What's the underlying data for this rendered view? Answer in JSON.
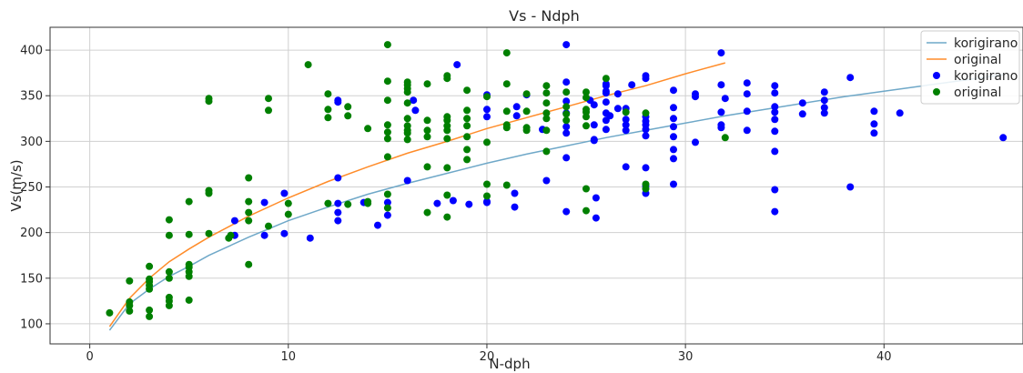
{
  "chart_data": {
    "type": "scatter",
    "title": "Vs - Ndph",
    "xlabel": "N-dph",
    "ylabel": "Vs(m/s)",
    "xlim": [
      -2,
      47
    ],
    "ylim": [
      78,
      425
    ],
    "xticks": [
      0,
      10,
      20,
      30,
      40
    ],
    "yticks": [
      100,
      150,
      200,
      250,
      300,
      350,
      400
    ],
    "grid": true,
    "legend_position": "top-right",
    "colors": {
      "korigirano_line": "#6fa8c8",
      "original_line": "#ff8c2a",
      "korigirano_points": "#0000ff",
      "original_points": "#008000",
      "grid": "#d0d0d0"
    },
    "series": [
      {
        "name": "korigirano",
        "kind": "line",
        "x": [
          1,
          2,
          3,
          4,
          5,
          6,
          8,
          10,
          12,
          14,
          16,
          18,
          20,
          22,
          24,
          26,
          28,
          30,
          32,
          34,
          36,
          38,
          40,
          42,
          44,
          46
        ],
        "y": [
          93,
          122,
          138,
          152,
          163,
          175,
          195,
          213,
          228,
          242,
          254,
          265,
          276,
          286,
          295,
          304,
          312,
          320,
          328,
          335,
          342,
          349,
          355,
          361,
          367,
          373
        ]
      },
      {
        "name": "original",
        "kind": "line",
        "x": [
          1,
          2,
          3,
          4,
          5,
          6,
          8,
          10,
          12,
          14,
          16,
          18,
          20,
          22,
          24,
          26,
          28,
          30,
          32
        ],
        "y": [
          97,
          128,
          150,
          168,
          182,
          195,
          218,
          238,
          256,
          272,
          287,
          300,
          314,
          326,
          338,
          350,
          361,
          374,
          386
        ]
      },
      {
        "name": "korigirano",
        "kind": "scatter",
        "points": [
          [
            7.3,
            213
          ],
          [
            7.3,
            197
          ],
          [
            8.8,
            233
          ],
          [
            8.8,
            197
          ],
          [
            9.8,
            243
          ],
          [
            9.8,
            199
          ],
          [
            11.1,
            194
          ],
          [
            12.5,
            260
          ],
          [
            12.5,
            222
          ],
          [
            12.5,
            232
          ],
          [
            12.5,
            213
          ],
          [
            12.5,
            345
          ],
          [
            12.5,
            343
          ],
          [
            13.8,
            233
          ],
          [
            14.5,
            208
          ],
          [
            15,
            233
          ],
          [
            15,
            219
          ],
          [
            16,
            257
          ],
          [
            16.3,
            345
          ],
          [
            16.4,
            334
          ],
          [
            17.5,
            232
          ],
          [
            18.3,
            235
          ],
          [
            18.5,
            384
          ],
          [
            19.1,
            231
          ],
          [
            20,
            351
          ],
          [
            20,
            335
          ],
          [
            20,
            327
          ],
          [
            20,
            234
          ],
          [
            20,
            233
          ],
          [
            21.4,
            243
          ],
          [
            21.4,
            228
          ],
          [
            21.5,
            338
          ],
          [
            21.5,
            328
          ],
          [
            22,
            351
          ],
          [
            22.8,
            313
          ],
          [
            23,
            257
          ],
          [
            24,
            406
          ],
          [
            24,
            365
          ],
          [
            24,
            344
          ],
          [
            24,
            331
          ],
          [
            24,
            316
          ],
          [
            24,
            309
          ],
          [
            24,
            282
          ],
          [
            24,
            223
          ],
          [
            25.2,
            345
          ],
          [
            25.4,
            340
          ],
          [
            25.4,
            318
          ],
          [
            25.4,
            302
          ],
          [
            25.4,
            301
          ],
          [
            25.5,
            238
          ],
          [
            25.5,
            216
          ],
          [
            26,
            363
          ],
          [
            26,
            361
          ],
          [
            26,
            355
          ],
          [
            26,
            353
          ],
          [
            26,
            343
          ],
          [
            26,
            331
          ],
          [
            26,
            323
          ],
          [
            26,
            313
          ],
          [
            26.2,
            328
          ],
          [
            26.6,
            336
          ],
          [
            26.6,
            352
          ],
          [
            27,
            336
          ],
          [
            27,
            324
          ],
          [
            27,
            318
          ],
          [
            27,
            312
          ],
          [
            27,
            272
          ],
          [
            27.3,
            362
          ],
          [
            28,
            372
          ],
          [
            28,
            369
          ],
          [
            28,
            327
          ],
          [
            28,
            322
          ],
          [
            28,
            318
          ],
          [
            28,
            313
          ],
          [
            28,
            306
          ],
          [
            28,
            271
          ],
          [
            28,
            251
          ],
          [
            28,
            243
          ],
          [
            29.4,
            356
          ],
          [
            29.4,
            337
          ],
          [
            29.4,
            325
          ],
          [
            29.4,
            316
          ],
          [
            29.4,
            305
          ],
          [
            29.4,
            291
          ],
          [
            29.4,
            281
          ],
          [
            29.4,
            253
          ],
          [
            30.5,
            352
          ],
          [
            30.5,
            349
          ],
          [
            30.5,
            299
          ],
          [
            31.8,
            397
          ],
          [
            31.8,
            362
          ],
          [
            31.8,
            332
          ],
          [
            31.8,
            318
          ],
          [
            31.8,
            315
          ],
          [
            32,
            347
          ],
          [
            33.1,
            364
          ],
          [
            33.1,
            352
          ],
          [
            33.1,
            333
          ],
          [
            33.1,
            312
          ],
          [
            34.5,
            361
          ],
          [
            34.5,
            353
          ],
          [
            34.5,
            338
          ],
          [
            34.5,
            332
          ],
          [
            34.5,
            324
          ],
          [
            34.5,
            311
          ],
          [
            34.5,
            289
          ],
          [
            34.5,
            247
          ],
          [
            34.5,
            223
          ],
          [
            35.9,
            342
          ],
          [
            35.9,
            330
          ],
          [
            37,
            354
          ],
          [
            37,
            345
          ],
          [
            37,
            337
          ],
          [
            37,
            331
          ],
          [
            38.3,
            370
          ],
          [
            38.3,
            250
          ],
          [
            39.5,
            333
          ],
          [
            39.5,
            319
          ],
          [
            39.5,
            309
          ],
          [
            40.8,
            331
          ],
          [
            46,
            304
          ]
        ]
      },
      {
        "name": "original",
        "kind": "scatter",
        "points": [
          [
            1,
            112
          ],
          [
            2,
            147
          ],
          [
            2,
            124
          ],
          [
            2,
            120
          ],
          [
            2,
            114
          ],
          [
            3,
            163
          ],
          [
            3,
            149
          ],
          [
            3,
            146
          ],
          [
            3,
            142
          ],
          [
            3,
            138
          ],
          [
            3,
            115
          ],
          [
            3,
            108
          ],
          [
            4,
            214
          ],
          [
            4,
            197
          ],
          [
            4,
            157
          ],
          [
            4,
            150
          ],
          [
            4,
            129
          ],
          [
            4,
            125
          ],
          [
            4,
            120
          ],
          [
            5,
            234
          ],
          [
            5,
            198
          ],
          [
            5,
            165
          ],
          [
            5,
            162
          ],
          [
            5,
            157
          ],
          [
            5,
            152
          ],
          [
            5,
            126
          ],
          [
            6,
            347
          ],
          [
            6,
            344
          ],
          [
            6,
            246
          ],
          [
            6,
            243
          ],
          [
            6,
            199
          ],
          [
            7,
            194
          ],
          [
            7.1,
            197
          ],
          [
            8,
            260
          ],
          [
            8,
            234
          ],
          [
            8,
            222
          ],
          [
            8,
            213
          ],
          [
            8,
            165
          ],
          [
            9,
            347
          ],
          [
            9,
            334
          ],
          [
            9,
            207
          ],
          [
            10,
            232
          ],
          [
            10,
            220
          ],
          [
            11,
            384
          ],
          [
            12,
            352
          ],
          [
            12,
            335
          ],
          [
            12,
            326
          ],
          [
            12,
            232
          ],
          [
            13,
            338
          ],
          [
            13,
            328
          ],
          [
            13,
            231
          ],
          [
            14,
            314
          ],
          [
            14,
            234
          ],
          [
            14,
            232
          ],
          [
            15,
            406
          ],
          [
            15,
            366
          ],
          [
            15,
            345
          ],
          [
            15,
            318
          ],
          [
            15,
            310
          ],
          [
            15,
            303
          ],
          [
            15,
            283
          ],
          [
            15,
            242
          ],
          [
            15,
            227
          ],
          [
            16,
            365
          ],
          [
            16,
            362
          ],
          [
            16,
            358
          ],
          [
            16,
            354
          ],
          [
            16,
            342
          ],
          [
            16,
            325
          ],
          [
            16,
            317
          ],
          [
            16,
            312
          ],
          [
            16,
            309
          ],
          [
            16,
            302
          ],
          [
            17,
            363
          ],
          [
            17,
            323
          ],
          [
            17,
            312
          ],
          [
            17,
            305
          ],
          [
            17,
            272
          ],
          [
            17,
            222
          ],
          [
            18,
            372
          ],
          [
            18,
            369
          ],
          [
            18,
            327
          ],
          [
            18,
            323
          ],
          [
            18,
            317
          ],
          [
            18,
            312
          ],
          [
            18,
            303
          ],
          [
            18,
            271
          ],
          [
            18,
            241
          ],
          [
            18,
            217
          ],
          [
            19,
            356
          ],
          [
            19,
            334
          ],
          [
            19,
            325
          ],
          [
            19,
            317
          ],
          [
            19,
            305
          ],
          [
            19,
            291
          ],
          [
            19,
            280
          ],
          [
            20,
            349
          ],
          [
            20,
            299
          ],
          [
            20,
            253
          ],
          [
            20,
            240
          ],
          [
            21,
            397
          ],
          [
            21,
            363
          ],
          [
            21,
            333
          ],
          [
            21,
            318
          ],
          [
            21,
            315
          ],
          [
            21,
            252
          ],
          [
            22,
            352
          ],
          [
            22,
            333
          ],
          [
            22,
            315
          ],
          [
            22,
            312
          ],
          [
            23,
            361
          ],
          [
            23,
            353
          ],
          [
            23,
            342
          ],
          [
            23,
            331
          ],
          [
            23,
            325
          ],
          [
            23,
            312
          ],
          [
            23,
            289
          ],
          [
            24,
            354
          ],
          [
            24,
            338
          ],
          [
            24,
            330
          ],
          [
            24,
            323
          ],
          [
            25,
            354
          ],
          [
            25,
            348
          ],
          [
            25,
            335
          ],
          [
            25,
            332
          ],
          [
            25,
            327
          ],
          [
            25,
            317
          ],
          [
            25,
            248
          ],
          [
            25,
            224
          ],
          [
            26,
            369
          ],
          [
            27,
            332
          ],
          [
            28,
            331
          ],
          [
            28,
            253
          ],
          [
            28,
            248
          ],
          [
            32,
            304
          ]
        ]
      }
    ]
  }
}
